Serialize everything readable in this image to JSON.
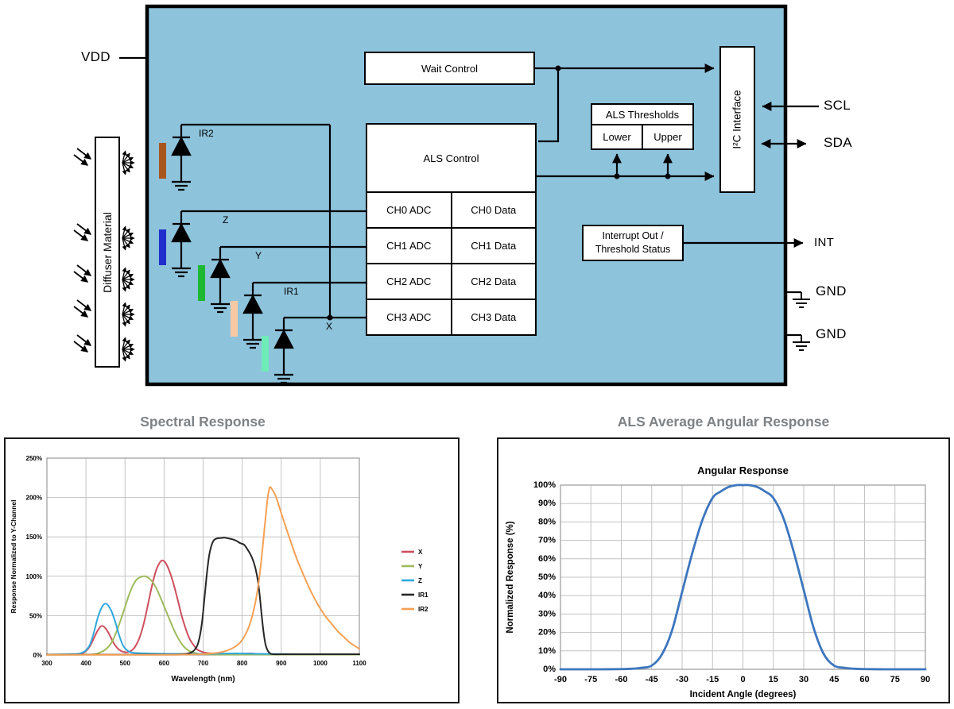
{
  "block_diagram": {
    "background_color": "#8EC3DC",
    "pins": {
      "vdd": "VDD",
      "scl": "SCL",
      "sda": "SDA",
      "int": "INT",
      "gnd1": "GND",
      "gnd2": "GND"
    },
    "diffuser_label": "Diffuser Material",
    "photodiodes": [
      {
        "label": "IR2",
        "color": "#A8551E"
      },
      {
        "label": "Z",
        "color": "#1F2ECC"
      },
      {
        "label": "Y",
        "color": "#1EB832"
      },
      {
        "label": "IR1",
        "color": "#F7C9A3"
      },
      {
        "label": "X",
        "color": "#6FEBB8"
      }
    ],
    "boxes": {
      "wait_control": "Wait Control",
      "als_control": "ALS Control",
      "als_thresholds": "ALS Thresholds",
      "lower": "Lower",
      "upper": "Upper",
      "i2c_interface": "I²C Interface",
      "interrupt_line1": "Interrupt Out /",
      "interrupt_line2": "Threshold Status"
    },
    "channels": [
      {
        "adc": "CH0 ADC",
        "data": "CH0 Data"
      },
      {
        "adc": "CH1 ADC",
        "data": "CH1 Data"
      },
      {
        "adc": "CH2 ADC",
        "data": "CH2 Data"
      },
      {
        "adc": "CH3 ADC",
        "data": "CH3 Data"
      }
    ]
  },
  "chart_data": [
    {
      "type": "line",
      "panel_title": "Spectral Response",
      "title": "",
      "xlabel": "Wavelength (nm)",
      "ylabel": "Response Normalized to Y-Channel",
      "xlim": [
        300,
        1100
      ],
      "ylim": [
        0,
        250
      ],
      "grid": true,
      "legend_position": "right",
      "xticks": [
        300,
        400,
        500,
        600,
        700,
        800,
        900,
        1000,
        1100
      ],
      "xtick_labels": [
        "300",
        "400",
        "500",
        "600",
        "700",
        "800",
        "900",
        "1000",
        "1100"
      ],
      "yticks": [
        0,
        50,
        100,
        150,
        200,
        250
      ],
      "ytick_labels": [
        "0%",
        "50%",
        "100%",
        "150%",
        "200%",
        "250%"
      ],
      "series": [
        {
          "name": "X",
          "color": "#CE4F5E",
          "points": [
            [
              300,
              0.5
            ],
            [
              360,
              0.5
            ],
            [
              380,
              1
            ],
            [
              390,
              2
            ],
            [
              400,
              5
            ],
            [
              410,
              11
            ],
            [
              420,
              21
            ],
            [
              430,
              31
            ],
            [
              440,
              37
            ],
            [
              450,
              34
            ],
            [
              460,
              26
            ],
            [
              470,
              16
            ],
            [
              480,
              9
            ],
            [
              490,
              5
            ],
            [
              500,
              3.5
            ],
            [
              510,
              4
            ],
            [
              520,
              7
            ],
            [
              530,
              14
            ],
            [
              540,
              26
            ],
            [
              550,
              44
            ],
            [
              560,
              67
            ],
            [
              570,
              90
            ],
            [
              580,
              108
            ],
            [
              590,
              118
            ],
            [
              597,
              120
            ],
            [
              605,
              116
            ],
            [
              615,
              105
            ],
            [
              625,
              89
            ],
            [
              635,
              70
            ],
            [
              645,
              50
            ],
            [
              655,
              34
            ],
            [
              665,
              21
            ],
            [
              675,
              13
            ],
            [
              685,
              7
            ],
            [
              695,
              4.5
            ],
            [
              710,
              2.5
            ],
            [
              730,
              2
            ],
            [
              760,
              1.5
            ],
            [
              800,
              1.5
            ],
            [
              820,
              2
            ],
            [
              860,
              1
            ],
            [
              950,
              1
            ],
            [
              1030,
              1
            ],
            [
              1100,
              1
            ]
          ]
        },
        {
          "name": "Y",
          "color": "#9DBB5C",
          "points": [
            [
              300,
              0.3
            ],
            [
              400,
              0.5
            ],
            [
              420,
              1
            ],
            [
              430,
              2
            ],
            [
              440,
              4
            ],
            [
              450,
              7
            ],
            [
              460,
              12
            ],
            [
              470,
              20
            ],
            [
              480,
              32
            ],
            [
              490,
              46
            ],
            [
              500,
              61
            ],
            [
              510,
              76
            ],
            [
              520,
              88
            ],
            [
              530,
              96
            ],
            [
              540,
              99
            ],
            [
              550,
              100
            ],
            [
              560,
              98
            ],
            [
              570,
              93
            ],
            [
              580,
              85
            ],
            [
              590,
              74
            ],
            [
              600,
              62
            ],
            [
              610,
              50
            ],
            [
              620,
              38
            ],
            [
              630,
              27
            ],
            [
              640,
              18
            ],
            [
              650,
              11
            ],
            [
              660,
              6.5
            ],
            [
              670,
              4
            ],
            [
              680,
              2.5
            ],
            [
              690,
              1.5
            ],
            [
              700,
              1
            ],
            [
              760,
              0.5
            ],
            [
              850,
              0.5
            ],
            [
              950,
              0.5
            ],
            [
              1050,
              0.5
            ],
            [
              1100,
              0.5
            ]
          ]
        },
        {
          "name": "Z",
          "color": "#2FA8DF",
          "points": [
            [
              300,
              0.5
            ],
            [
              350,
              1
            ],
            [
              380,
              1.5
            ],
            [
              390,
              3
            ],
            [
              400,
              6
            ],
            [
              410,
              13
            ],
            [
              420,
              28
            ],
            [
              430,
              47
            ],
            [
              440,
              60
            ],
            [
              448,
              65
            ],
            [
              455,
              64
            ],
            [
              465,
              56
            ],
            [
              475,
              42
            ],
            [
              485,
              25
            ],
            [
              495,
              12
            ],
            [
              505,
              6
            ],
            [
              515,
              3.5
            ],
            [
              530,
              2.5
            ],
            [
              560,
              2
            ],
            [
              620,
              1.5
            ],
            [
              700,
              1.5
            ],
            [
              780,
              2
            ],
            [
              850,
              1.5
            ],
            [
              950,
              1
            ],
            [
              1030,
              1
            ],
            [
              1100,
              1
            ]
          ]
        },
        {
          "name": "IR1",
          "color": "#262626",
          "points": [
            [
              300,
              0.5
            ],
            [
              400,
              0.5
            ],
            [
              500,
              0.5
            ],
            [
              580,
              0.5
            ],
            [
              620,
              0.5
            ],
            [
              650,
              1
            ],
            [
              665,
              2.5
            ],
            [
              675,
              5
            ],
            [
              685,
              12
            ],
            [
              692,
              25
            ],
            [
              698,
              45
            ],
            [
              704,
              75
            ],
            [
              710,
              105
            ],
            [
              716,
              128
            ],
            [
              722,
              140
            ],
            [
              728,
              146
            ],
            [
              735,
              148
            ],
            [
              745,
              148.5
            ],
            [
              755,
              149
            ],
            [
              765,
              148
            ],
            [
              775,
              147
            ],
            [
              785,
              145
            ],
            [
              795,
              142
            ],
            [
              805,
              140
            ],
            [
              815,
              133
            ],
            [
              822,
              127
            ],
            [
              828,
              120
            ],
            [
              834,
              110
            ],
            [
              840,
              95
            ],
            [
              845,
              75
            ],
            [
              850,
              50
            ],
            [
              855,
              28
            ],
            [
              860,
              13
            ],
            [
              866,
              5
            ],
            [
              872,
              2
            ],
            [
              880,
              1
            ],
            [
              920,
              1
            ],
            [
              1000,
              1
            ],
            [
              1100,
              1
            ]
          ]
        },
        {
          "name": "IR2",
          "color": "#F5A054",
          "points": [
            [
              300,
              0.3
            ],
            [
              400,
              0.3
            ],
            [
              500,
              0.3
            ],
            [
              580,
              0.3
            ],
            [
              620,
              0.3
            ],
            [
              680,
              0.8
            ],
            [
              710,
              1.5
            ],
            [
              740,
              3
            ],
            [
              760,
              5.5
            ],
            [
              780,
              10
            ],
            [
              795,
              16
            ],
            [
              805,
              23
            ],
            [
              815,
              33
            ],
            [
              825,
              48
            ],
            [
              835,
              70
            ],
            [
              843,
              95
            ],
            [
              850,
              125
            ],
            [
              857,
              160
            ],
            [
              862,
              185
            ],
            [
              866,
              202
            ],
            [
              870,
              212
            ],
            [
              873,
              213
            ],
            [
              877,
              210
            ],
            [
              883,
              205
            ],
            [
              890,
              196
            ],
            [
              900,
              180
            ],
            [
              912,
              162
            ],
            [
              925,
              143
            ],
            [
              940,
              122
            ],
            [
              955,
              104
            ],
            [
              970,
              87
            ],
            [
              985,
              72
            ],
            [
              1000,
              59
            ],
            [
              1015,
              48
            ],
            [
              1030,
              39
            ],
            [
              1045,
              30
            ],
            [
              1060,
              23
            ],
            [
              1075,
              16
            ],
            [
              1090,
              11
            ],
            [
              1100,
              8
            ]
          ]
        }
      ]
    },
    {
      "type": "line",
      "panel_title": "ALS Average Angular Response",
      "title": "Angular Response",
      "xlabel": "Incident Angle (degrees)",
      "ylabel": "Normalized Response (%)",
      "xlim": [
        -90,
        90
      ],
      "ylim": [
        0,
        100
      ],
      "grid": true,
      "legend_position": "none",
      "xticks": [
        -90,
        -75,
        -60,
        -45,
        -30,
        -15,
        0,
        15,
        30,
        45,
        60,
        75,
        90
      ],
      "xtick_labels": [
        "-90",
        "-75",
        "-60",
        "-45",
        "-30",
        "-15",
        "0",
        "15",
        "30",
        "45",
        "60",
        "75",
        "90"
      ],
      "yticks": [
        0,
        10,
        20,
        30,
        40,
        50,
        60,
        70,
        80,
        90,
        100
      ],
      "ytick_labels": [
        "0%",
        "10%",
        "20%",
        "30%",
        "40%",
        "50%",
        "60%",
        "70%",
        "80%",
        "90%",
        "100%"
      ],
      "series": [
        {
          "name": "Angular Response",
          "color": "#3D76BE",
          "points": [
            [
              -90,
              0
            ],
            [
              -80,
              0
            ],
            [
              -70,
              0
            ],
            [
              -60,
              0.1
            ],
            [
              -55,
              0.3
            ],
            [
              -50,
              0.8
            ],
            [
              -45,
              2
            ],
            [
              -40,
              8
            ],
            [
              -35,
              21
            ],
            [
              -30,
              42
            ],
            [
              -25,
              63
            ],
            [
              -20,
              81
            ],
            [
              -15,
              93
            ],
            [
              -11,
              96.5
            ],
            [
              -7,
              99
            ],
            [
              -3,
              100
            ],
            [
              0,
              100
            ],
            [
              3,
              100
            ],
            [
              7,
              99
            ],
            [
              11,
              96.5
            ],
            [
              15,
              93
            ],
            [
              20,
              82
            ],
            [
              25,
              64
            ],
            [
              30,
              43
            ],
            [
              35,
              22
            ],
            [
              40,
              8
            ],
            [
              45,
              2
            ],
            [
              50,
              0.8
            ],
            [
              55,
              0.3
            ],
            [
              60,
              0.1
            ],
            [
              70,
              0
            ],
            [
              80,
              0
            ],
            [
              90,
              0
            ]
          ]
        }
      ]
    }
  ]
}
